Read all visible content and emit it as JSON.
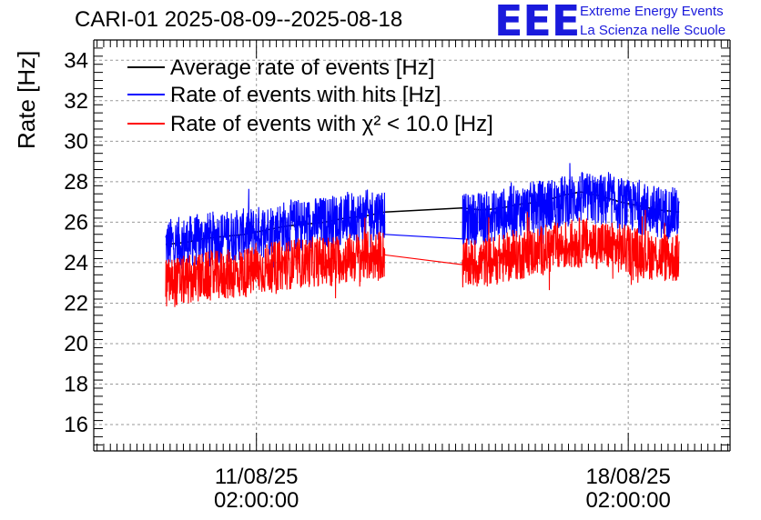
{
  "header": {
    "title": "CARI-01 2025-08-09--2025-08-18",
    "logo_text": "EEE",
    "logo_line1": "Extreme Energy Events",
    "logo_line2": "La Scienza nelle Scuole"
  },
  "colors": {
    "logo": "#1a1adc",
    "average": "#000000",
    "hits": "#0000ff",
    "chi2": "#ff0000",
    "grid": "#9a9a9a"
  },
  "chart_data": {
    "type": "line",
    "title": "CARI-01 2025-08-09--2025-08-18",
    "ylabel": "Rate [Hz]",
    "xlabel": "",
    "ylim": [
      14.7,
      35
    ],
    "yticks": [
      "16",
      "18",
      "20",
      "22",
      "24",
      "26",
      "28",
      "30",
      "32",
      "34"
    ],
    "xticks": [
      {
        "date": "11/08/25",
        "time": "02:00:00"
      },
      {
        "date": "18/08/25",
        "time": "02:00:00"
      }
    ],
    "xlim_days": [
      "2025-08-08 00:30",
      "2025-08-20 00:00"
    ],
    "grid": true,
    "legend_position": "top-left",
    "gap": [
      "2025-08-13 12:00",
      "2025-08-14 23:00"
    ],
    "series": [
      {
        "name": "Average rate of events [Hz]",
        "color": "#000000",
        "segments": [
          {
            "start": "2025-08-09 09:00",
            "end": "2025-08-13 12:00",
            "values": [
              24.9,
              25.0,
              25.2,
              25.3,
              25.4,
              25.6,
              25.8,
              25.9,
              26.0,
              26.2,
              26.3,
              26.5
            ]
          },
          {
            "start": "2025-08-14 23:00",
            "end": "2025-08-19 01:00",
            "values": [
              26.7,
              26.6,
              26.7,
              26.9,
              27.0,
              27.3,
              27.5,
              27.3,
              27.0,
              26.8,
              26.6,
              26.5
            ]
          }
        ]
      },
      {
        "name": "Rate of events with hits [Hz]",
        "color": "#0000ff",
        "segments": [
          {
            "start": "2025-08-09 09:00",
            "end": "2025-08-13 12:00",
            "values": [
              24.9,
              25.0,
              25.2,
              25.3,
              25.4,
              25.6,
              25.8,
              25.9,
              26.0,
              26.2,
              26.3,
              26.5
            ]
          },
          {
            "start": "2025-08-14 23:00",
            "end": "2025-08-19 01:00",
            "values": [
              26.1,
              26.2,
              26.4,
              26.6,
              26.8,
              27.0,
              27.2,
              27.1,
              26.9,
              26.7,
              26.5,
              26.4
            ]
          }
        ]
      },
      {
        "name": "Rate of events with χ² < 10.0 [Hz]",
        "color": "#ff0000",
        "segments": [
          {
            "start": "2025-08-09 09:00",
            "end": "2025-08-13 12:00",
            "values": [
              23.0,
              23.1,
              23.3,
              23.4,
              23.5,
              23.7,
              23.9,
              24.0,
              24.1,
              24.2,
              24.3,
              24.4
            ]
          },
          {
            "start": "2025-08-14 23:00",
            "end": "2025-08-19 01:00",
            "values": [
              23.9,
              24.0,
              24.2,
              24.4,
              24.6,
              24.8,
              25.0,
              24.9,
              24.7,
              24.5,
              24.3,
              24.2
            ]
          }
        ]
      }
    ]
  }
}
